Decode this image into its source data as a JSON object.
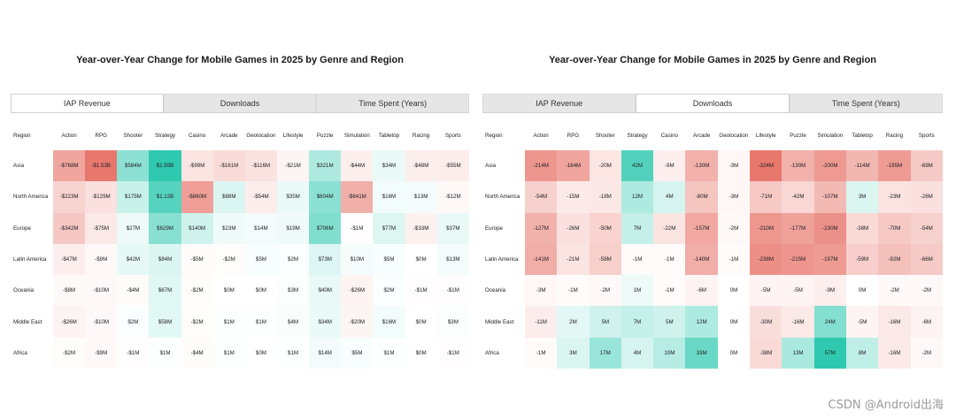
{
  "chart_data": [
    {
      "type": "heatmap",
      "title": "Year-over-Year Change for Mobile Games in 2025 by Genre and Region",
      "tabs": [
        "IAP Revenue",
        "Downloads",
        "Time Spent (Years)"
      ],
      "active_tab": 0,
      "row_header": "Region",
      "columns": [
        "Action",
        "RPG",
        "Shooter",
        "Strategy",
        "Casino",
        "Arcade",
        "Geolocation",
        "Lifestyle",
        "Puzzle",
        "Simulation",
        "Tabletop",
        "Racing",
        "Sports"
      ],
      "rows": [
        "Asia",
        "North America",
        "Europe",
        "Latin America",
        "Oceania",
        "Middle East",
        "Africa"
      ],
      "values": [
        [
          -768,
          -1530,
          584,
          1590,
          -99,
          -161,
          -116,
          -21,
          321,
          -44,
          34,
          -48,
          -55
        ],
        [
          -223,
          -129,
          175,
          1120,
          -860,
          88,
          -54,
          35,
          604,
          -641,
          16,
          13,
          -12
        ],
        [
          -342,
          -75,
          27,
          629,
          140,
          23,
          14,
          19,
          706,
          -1,
          77,
          -33,
          37
        ],
        [
          -47,
          -9,
          42,
          84,
          -5,
          -2,
          5,
          2,
          73,
          10,
          5,
          0,
          13
        ],
        [
          -8,
          -10,
          -4,
          67,
          -2,
          0,
          0,
          3,
          40,
          -26,
          2,
          -1,
          -1
        ],
        [
          -26,
          -10,
          2,
          58,
          -2,
          1,
          1,
          4,
          34,
          -20,
          16,
          0,
          3
        ],
        [
          -2,
          -9,
          -1,
          1,
          -4,
          1,
          0,
          1,
          14,
          5,
          1,
          0,
          -1
        ]
      ],
      "labels": [
        [
          "-$768M",
          "-$1.53B",
          "$584M",
          "$1.59B",
          "-$99M",
          "-$161M",
          "-$116M",
          "-$21M",
          "$321M",
          "-$44M",
          "$34M",
          "-$48M",
          "-$55M"
        ],
        [
          "-$223M",
          "-$129M",
          "$175M",
          "$1.12B",
          "-$860M",
          "$88M",
          "-$54M",
          "$35M",
          "$604M",
          "-$641M",
          "$16M",
          "$13M",
          "-$12M"
        ],
        [
          "-$342M",
          "-$75M",
          "$27M",
          "$629M",
          "$140M",
          "$23M",
          "$14M",
          "$19M",
          "$706M",
          "-$1M",
          "$77M",
          "-$33M",
          "$37M"
        ],
        [
          "-$47M",
          "-$9M",
          "$42M",
          "$84M",
          "-$5M",
          "-$2M",
          "$5M",
          "$2M",
          "$73M",
          "$10M",
          "$5M",
          "$0M",
          "$13M"
        ],
        [
          "-$8M",
          "-$10M",
          "-$4M",
          "$67M",
          "-$2M",
          "$0M",
          "$0M",
          "$3M",
          "$40M",
          "-$26M",
          "$2M",
          "-$1M",
          "-$1M"
        ],
        [
          "-$26M",
          "-$10M",
          "$2M",
          "$58M",
          "-$2M",
          "$1M",
          "$1M",
          "$4M",
          "$34M",
          "-$20M",
          "$16M",
          "$0M",
          "$3M"
        ],
        [
          "-$2M",
          "-$9M",
          "-$1M",
          "$1M",
          "-$4M",
          "$1M",
          "$0M",
          "$1M",
          "$14M",
          "$5M",
          "$1M",
          "$0M",
          "-$1M"
        ]
      ],
      "color_negative": "#e8786e",
      "color_positive": "#2fc9b0",
      "color_neutral": "#ffffff"
    },
    {
      "type": "heatmap",
      "title": "Year-over-Year Change for Mobile Games in 2025 by Genre and Region",
      "tabs": [
        "IAP Revenue",
        "Downloads",
        "Time Spent (Years)"
      ],
      "active_tab": 1,
      "row_header": "Region",
      "columns": [
        "Action",
        "RPG",
        "Shooter",
        "Strategy",
        "Casino",
        "Arcade",
        "Geolocation",
        "Lifestyle",
        "Puzzle",
        "Simulation",
        "Tabletop",
        "Racing",
        "Sports"
      ],
      "rows": [
        "Asia",
        "North America",
        "Europe",
        "Latin America",
        "Oceania",
        "Middle East",
        "Africa"
      ],
      "values": [
        [
          -214,
          -164,
          -20,
          42,
          -9,
          -130,
          -3,
          -324,
          -130,
          -200,
          -114,
          -195,
          -69
        ],
        [
          -54,
          -15,
          -18,
          12,
          4,
          -80,
          -3,
          -71,
          -42,
          -107,
          3,
          -23,
          -28
        ],
        [
          -127,
          -26,
          -50,
          7,
          -22,
          -157,
          -2,
          -210,
          -177,
          -230,
          -38,
          -70,
          -54
        ],
        [
          -141,
          -21,
          -58,
          -1,
          -1,
          -140,
          -1,
          -238,
          -215,
          -197,
          -59,
          -92,
          -66
        ],
        [
          -3,
          -1,
          -2,
          1,
          -1,
          -6,
          0,
          -5,
          -5,
          -9,
          0,
          -2,
          -2
        ],
        [
          -11,
          2,
          5,
          7,
          5,
          12,
          0,
          -30,
          -16,
          24,
          -5,
          -16,
          -6
        ],
        [
          -1,
          3,
          17,
          4,
          10,
          33,
          0,
          -38,
          13,
          57,
          8,
          -16,
          -2
        ]
      ],
      "labels": [
        [
          "-214M",
          "-164M",
          "-20M",
          "42M",
          "-9M",
          "-130M",
          "-3M",
          "-324M",
          "-130M",
          "-200M",
          "-114M",
          "-195M",
          "-69M"
        ],
        [
          "-54M",
          "-15M",
          "-18M",
          "12M",
          "4M",
          "-80M",
          "-3M",
          "-71M",
          "-42M",
          "-107M",
          "3M",
          "-23M",
          "-28M"
        ],
        [
          "-127M",
          "-26M",
          "-50M",
          "7M",
          "-22M",
          "-157M",
          "-2M",
          "-210M",
          "-177M",
          "-230M",
          "-38M",
          "-70M",
          "-54M"
        ],
        [
          "-141M",
          "-21M",
          "-58M",
          "-1M",
          "-1M",
          "-140M",
          "-1M",
          "-238M",
          "-215M",
          "-197M",
          "-59M",
          "-92M",
          "-66M"
        ],
        [
          "-3M",
          "-1M",
          "-2M",
          "1M",
          "-1M",
          "-6M",
          "0M",
          "-5M",
          "-5M",
          "-9M",
          "0M",
          "-2M",
          "-2M"
        ],
        [
          "-11M",
          "2M",
          "5M",
          "7M",
          "5M",
          "12M",
          "0M",
          "-30M",
          "-16M",
          "24M",
          "-5M",
          "-16M",
          "-6M"
        ],
        [
          "-1M",
          "3M",
          "17M",
          "4M",
          "10M",
          "33M",
          "0M",
          "-38M",
          "13M",
          "57M",
          "8M",
          "-16M",
          "-2M"
        ]
      ],
      "color_negative": "#e8786e",
      "color_positive": "#2fc9b0",
      "color_neutral": "#ffffff"
    }
  ],
  "watermark": "CSDN @Android出海"
}
